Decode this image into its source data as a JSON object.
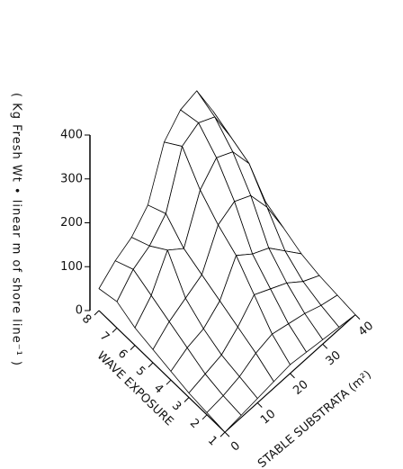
{
  "chart_data": {
    "type": "surface",
    "zlabel": "( Kg  Fresh Wt • linear m of shore line⁻¹ )",
    "xlabel": "WAVE EXPOSURE",
    "ylabel": "STABLE SUBSTRATA (m²)",
    "x": [
      1,
      2,
      3,
      4,
      5,
      6,
      7,
      8
    ],
    "y": [
      0,
      5,
      10,
      15,
      20,
      25,
      30,
      35,
      40
    ],
    "xticks": [
      1,
      2,
      3,
      4,
      5,
      6,
      7,
      8
    ],
    "yticks": [
      0,
      10,
      20,
      30,
      40
    ],
    "zlim": [
      0,
      400
    ],
    "zticks": [
      0,
      100,
      200,
      300,
      400
    ],
    "values": [
      [
        0,
        5,
        10,
        15,
        20,
        15,
        10,
        5,
        0
      ],
      [
        5,
        10,
        20,
        40,
        50,
        40,
        30,
        15,
        5
      ],
      [
        10,
        20,
        30,
        60,
        100,
        80,
        60,
        30,
        10
      ],
      [
        20,
        40,
        50,
        80,
        150,
        120,
        100,
        60,
        20
      ],
      [
        30,
        60,
        80,
        100,
        180,
        200,
        180,
        120,
        40
      ],
      [
        40,
        80,
        150,
        120,
        220,
        260,
        240,
        180,
        60
      ],
      [
        60,
        100,
        120,
        160,
        280,
        300,
        280,
        200,
        80
      ],
      [
        50,
        80,
        100,
        140,
        250,
        290,
        300,
        220,
        100
      ]
    ],
    "color": "#000000"
  }
}
